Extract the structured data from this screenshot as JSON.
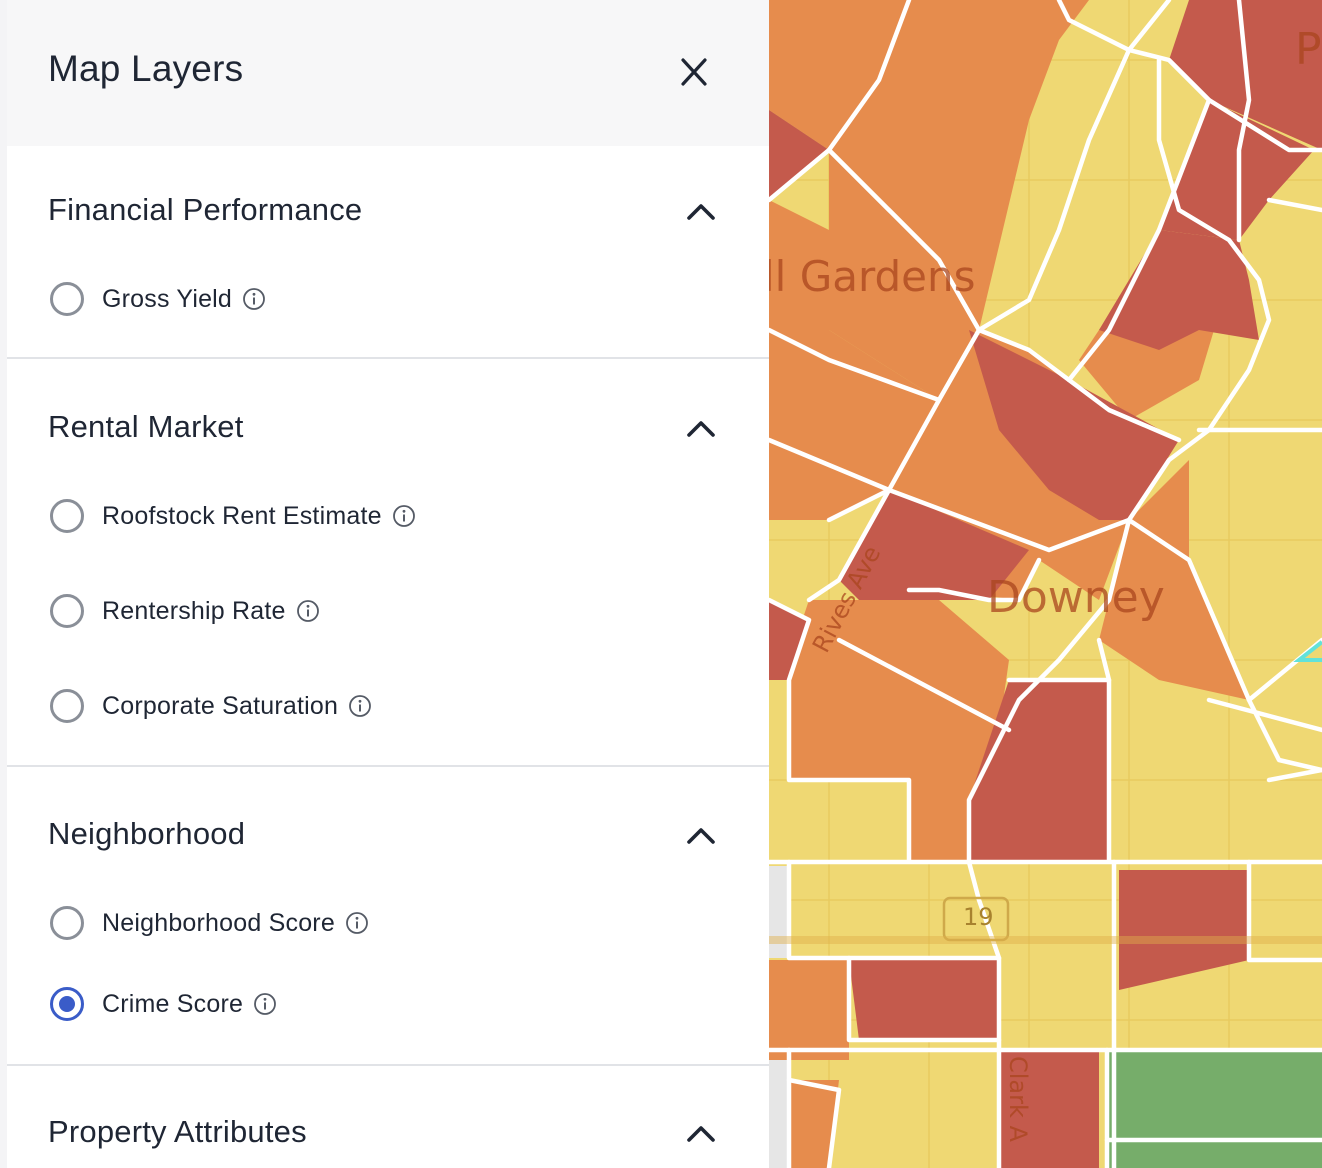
{
  "panel": {
    "title": "Map Layers",
    "close_icon": "close-icon"
  },
  "sections": [
    {
      "title": "Financial Performance",
      "expanded": true,
      "options": [
        {
          "label": "Gross Yield",
          "selected": false
        }
      ]
    },
    {
      "title": "Rental Market",
      "expanded": true,
      "options": [
        {
          "label": "Roofstock Rent Estimate",
          "selected": false
        },
        {
          "label": "Rentership Rate",
          "selected": false
        },
        {
          "label": "Corporate Saturation",
          "selected": false
        }
      ]
    },
    {
      "title": "Neighborhood",
      "expanded": true,
      "options": [
        {
          "label": "Neighborhood Score",
          "selected": false
        },
        {
          "label": "Crime Score",
          "selected": true
        }
      ]
    },
    {
      "title": "Property Attributes",
      "expanded": true,
      "options": []
    }
  ],
  "map": {
    "labels": {
      "gardens": "ll Gardens",
      "downey": "Downey",
      "rives": "Rives Ave",
      "clark": "Clark A",
      "route": "19",
      "corner": "P"
    },
    "colors": {
      "low": "#f0d774",
      "medium": "#e68c4d",
      "high": "#c45a4c",
      "very_low": "#76ad6a",
      "boundary": "#ffffff",
      "selected_radio": "#3a5cc8"
    }
  }
}
